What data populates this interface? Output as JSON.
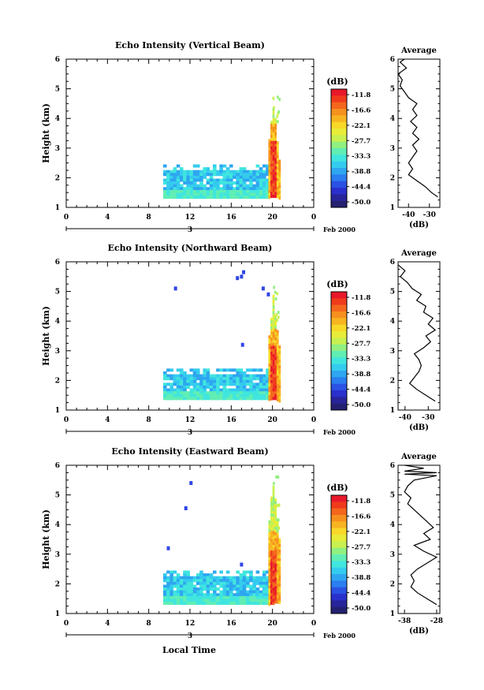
{
  "chart_data": [
    {
      "type": "heatmap",
      "title": "Echo Intensity (Vertical Beam)",
      "ylabel": "Height (km)",
      "xlim": [
        0,
        24
      ],
      "ylim": [
        1,
        6
      ],
      "xticks": [
        "0",
        "4",
        "8",
        "12",
        "16",
        "20",
        "0"
      ],
      "yticks": [
        "1",
        "2",
        "3",
        "4",
        "5",
        "6"
      ],
      "date_day": "3",
      "date_month": "Feb 2000",
      "noise_layer": {
        "start_h": 9.4,
        "end_h": 19.6,
        "base_km": 1.35,
        "top_km": 2.45
      },
      "precip": {
        "start_h": 19.6,
        "end_h": 20.6,
        "top_km": 4.6,
        "core_km": 3.3
      },
      "specks": [],
      "average_panel": {
        "title": "Average",
        "xlabel": "(dB)",
        "xticks": [
          "-40",
          "-30"
        ],
        "xlim": [
          -45,
          -25
        ],
        "profile": [
          [
            1.35,
            -26
          ],
          [
            1.5,
            -29
          ],
          [
            1.7,
            -32
          ],
          [
            1.9,
            -36
          ],
          [
            2.1,
            -40
          ],
          [
            2.3,
            -38
          ],
          [
            2.5,
            -40
          ],
          [
            2.7,
            -38
          ],
          [
            2.9,
            -36
          ],
          [
            3.1,
            -38
          ],
          [
            3.3,
            -35
          ],
          [
            3.5,
            -38
          ],
          [
            3.7,
            -36
          ],
          [
            3.9,
            -39
          ],
          [
            4.1,
            -36
          ],
          [
            4.3,
            -38
          ],
          [
            4.5,
            -36
          ],
          [
            4.7,
            -40
          ],
          [
            4.9,
            -42
          ],
          [
            5.1,
            -44
          ],
          [
            5.3,
            -43
          ],
          [
            5.5,
            -45
          ],
          [
            5.7,
            -41
          ],
          [
            5.9,
            -44
          ],
          [
            6.0,
            -42
          ]
        ]
      }
    },
    {
      "type": "heatmap",
      "title": "Echo Intensity (Northward Beam)",
      "ylabel": "Height (km)",
      "xlim": [
        0,
        24
      ],
      "ylim": [
        1,
        6
      ],
      "xticks": [
        "0",
        "4",
        "8",
        "12",
        "16",
        "20",
        "0"
      ],
      "yticks": [
        "1",
        "2",
        "3",
        "4",
        "5",
        "6"
      ],
      "date_day": "3",
      "date_month": "Feb 2000",
      "noise_layer": {
        "start_h": 9.4,
        "end_h": 19.6,
        "base_km": 1.35,
        "top_km": 2.4
      },
      "precip": {
        "start_h": 19.6,
        "end_h": 20.6,
        "top_km": 5.1,
        "core_km": 3.2
      },
      "specks": [
        [
          10.6,
          5.1
        ],
        [
          17.2,
          5.65
        ],
        [
          16.6,
          5.45
        ],
        [
          17.0,
          5.5
        ],
        [
          19.1,
          5.1
        ],
        [
          19.6,
          4.9
        ],
        [
          17.1,
          3.2
        ]
      ],
      "average_panel": {
        "title": "Average",
        "xlabel": "(dB)",
        "xticks": [
          "-40",
          "-30"
        ],
        "xlim": [
          -43,
          -25
        ],
        "profile": [
          [
            1.3,
            -27
          ],
          [
            1.5,
            -31
          ],
          [
            1.7,
            -35
          ],
          [
            1.9,
            -38
          ],
          [
            2.1,
            -36
          ],
          [
            2.3,
            -34
          ],
          [
            2.5,
            -33
          ],
          [
            2.7,
            -34
          ],
          [
            2.9,
            -36
          ],
          [
            3.1,
            -32
          ],
          [
            3.3,
            -29
          ],
          [
            3.5,
            -31
          ],
          [
            3.7,
            -27
          ],
          [
            3.9,
            -30
          ],
          [
            4.1,
            -28
          ],
          [
            4.3,
            -32
          ],
          [
            4.5,
            -31
          ],
          [
            4.7,
            -35
          ],
          [
            4.9,
            -33
          ],
          [
            5.1,
            -37
          ],
          [
            5.3,
            -39
          ],
          [
            5.5,
            -42
          ],
          [
            5.7,
            -40
          ],
          [
            5.9,
            -43
          ]
        ]
      }
    },
    {
      "type": "heatmap",
      "title": "Echo Intensity (Eastward Beam)",
      "ylabel": "Height (km)",
      "xlabel": "Local Time",
      "xlim": [
        0,
        24
      ],
      "ylim": [
        1,
        6
      ],
      "xticks": [
        "0",
        "4",
        "8",
        "12",
        "16",
        "20",
        "0"
      ],
      "yticks": [
        "1",
        "2",
        "3",
        "4",
        "5",
        "6"
      ],
      "date_day": "3",
      "date_month": "Feb 2000",
      "noise_layer": {
        "start_h": 9.4,
        "end_h": 19.6,
        "base_km": 1.35,
        "top_km": 2.45
      },
      "precip": {
        "start_h": 19.6,
        "end_h": 20.6,
        "top_km": 5.7,
        "core_km": 3.2
      },
      "specks": [
        [
          12.1,
          5.4
        ],
        [
          11.6,
          4.55
        ],
        [
          9.9,
          3.2
        ],
        [
          17.0,
          2.65
        ]
      ],
      "average_panel": {
        "title": "Average",
        "xlabel": "(dB)",
        "xticks": [
          "-38",
          "-28"
        ],
        "xlim": [
          -40,
          -27
        ],
        "profile": [
          [
            1.3,
            -28
          ],
          [
            1.5,
            -31
          ],
          [
            1.7,
            -34
          ],
          [
            1.9,
            -36
          ],
          [
            2.1,
            -35
          ],
          [
            2.3,
            -36
          ],
          [
            2.5,
            -34
          ],
          [
            2.7,
            -31
          ],
          [
            2.9,
            -28
          ],
          [
            3.1,
            -32
          ],
          [
            3.3,
            -35
          ],
          [
            3.5,
            -30
          ],
          [
            3.7,
            -32
          ],
          [
            3.9,
            -29
          ],
          [
            4.1,
            -31
          ],
          [
            4.3,
            -33
          ],
          [
            4.5,
            -35
          ],
          [
            4.7,
            -37
          ],
          [
            4.9,
            -36
          ],
          [
            5.1,
            -38
          ],
          [
            5.3,
            -37
          ],
          [
            5.5,
            -35
          ],
          [
            5.65,
            -28
          ],
          [
            5.7,
            -38
          ],
          [
            5.75,
            -28
          ],
          [
            5.8,
            -38
          ],
          [
            5.9,
            -32
          ],
          [
            6.0,
            -38
          ]
        ]
      }
    }
  ],
  "colorbar": {
    "unit": "(dB)",
    "labels": [
      "-11.8",
      "-16.6",
      "-22.1",
      "-27.7",
      "-33.3",
      "-38.8",
      "-44.4",
      "-50.0"
    ],
    "colors": [
      "#e8182a",
      "#f03a1c",
      "#f4661c",
      "#f6901e",
      "#f8b420",
      "#f8d828",
      "#e8ec38",
      "#c8f050",
      "#90f080",
      "#60eeb4",
      "#40e6de",
      "#34ccee",
      "#2ea6f0",
      "#2a7ef0",
      "#2a52e4",
      "#2a30cc",
      "#28249a",
      "#242070"
    ]
  }
}
